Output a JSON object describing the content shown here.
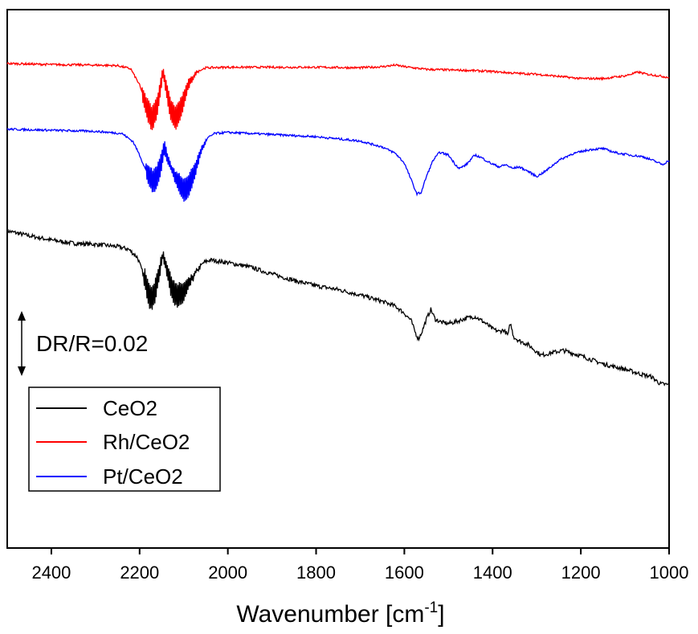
{
  "chart_data": {
    "type": "line",
    "xlabel": "Wavenumber [cm",
    "xlabel_sup": "-1",
    "xlabel_end": "]",
    "xlim": [
      2500,
      1000
    ],
    "ylim": [
      0,
      1
    ],
    "x_ticks": [
      2400,
      2200,
      2000,
      1800,
      1600,
      1400,
      1200,
      1000
    ],
    "x_tick_labels": [
      "2400",
      "2200",
      "2000",
      "1800",
      "1600",
      "1400",
      "1200",
      "1000"
    ],
    "annotation": "DR/R=0.02",
    "legend_position": "lower-left",
    "series": [
      {
        "name": "CeO2",
        "color": "#000000",
        "noise": 0.004,
        "doublet": {
          "centers": [
            2175,
            2115
          ],
          "range": [
            2190,
            2050
          ]
        },
        "points": [
          [
            2500,
            0.589
          ],
          [
            2450,
            0.58
          ],
          [
            2400,
            0.572
          ],
          [
            2350,
            0.566
          ],
          [
            2300,
            0.564
          ],
          [
            2250,
            0.56
          ],
          [
            2225,
            0.555
          ],
          [
            2205,
            0.54
          ],
          [
            2190,
            0.505
          ],
          [
            2175,
            0.463
          ],
          [
            2165,
            0.475
          ],
          [
            2155,
            0.515
          ],
          [
            2147,
            0.545
          ],
          [
            2140,
            0.525
          ],
          [
            2130,
            0.49
          ],
          [
            2115,
            0.466
          ],
          [
            2100,
            0.475
          ],
          [
            2085,
            0.495
          ],
          [
            2070,
            0.515
          ],
          [
            2055,
            0.53
          ],
          [
            2040,
            0.535
          ],
          [
            2000,
            0.53
          ],
          [
            1950,
            0.522
          ],
          [
            1900,
            0.509
          ],
          [
            1850,
            0.497
          ],
          [
            1800,
            0.487
          ],
          [
            1750,
            0.48
          ],
          [
            1700,
            0.47
          ],
          [
            1650,
            0.458
          ],
          [
            1620,
            0.449
          ],
          [
            1600,
            0.436
          ],
          [
            1585,
            0.423
          ],
          [
            1575,
            0.4
          ],
          [
            1568,
            0.388
          ],
          [
            1560,
            0.402
          ],
          [
            1550,
            0.425
          ],
          [
            1540,
            0.443
          ],
          [
            1530,
            0.425
          ],
          [
            1515,
            0.419
          ],
          [
            1500,
            0.417
          ],
          [
            1480,
            0.421
          ],
          [
            1460,
            0.427
          ],
          [
            1440,
            0.43
          ],
          [
            1420,
            0.42
          ],
          [
            1400,
            0.407
          ],
          [
            1385,
            0.402
          ],
          [
            1375,
            0.405
          ],
          [
            1365,
            0.395
          ],
          [
            1360,
            0.418
          ],
          [
            1352,
            0.392
          ],
          [
            1340,
            0.385
          ],
          [
            1320,
            0.378
          ],
          [
            1305,
            0.368
          ],
          [
            1290,
            0.358
          ],
          [
            1270,
            0.362
          ],
          [
            1240,
            0.367
          ],
          [
            1200,
            0.357
          ],
          [
            1150,
            0.342
          ],
          [
            1100,
            0.332
          ],
          [
            1060,
            0.322
          ],
          [
            1040,
            0.318
          ],
          [
            1020,
            0.305
          ],
          [
            1000,
            0.303
          ]
        ]
      },
      {
        "name": "Rh/CeO2",
        "color": "#ff0000",
        "noise": 0.002,
        "doublet": {
          "centers": [
            2172,
            2118
          ],
          "range": [
            2195,
            2060
          ]
        },
        "points": [
          [
            2500,
            0.9
          ],
          [
            2400,
            0.898
          ],
          [
            2300,
            0.897
          ],
          [
            2250,
            0.896
          ],
          [
            2220,
            0.89
          ],
          [
            2200,
            0.86
          ],
          [
            2185,
            0.82
          ],
          [
            2172,
            0.797
          ],
          [
            2160,
            0.82
          ],
          [
            2152,
            0.86
          ],
          [
            2147,
            0.885
          ],
          [
            2140,
            0.855
          ],
          [
            2130,
            0.815
          ],
          [
            2118,
            0.797
          ],
          [
            2105,
            0.82
          ],
          [
            2090,
            0.86
          ],
          [
            2070,
            0.885
          ],
          [
            2050,
            0.892
          ],
          [
            2000,
            0.893
          ],
          [
            1900,
            0.893
          ],
          [
            1800,
            0.893
          ],
          [
            1700,
            0.892
          ],
          [
            1650,
            0.894
          ],
          [
            1620,
            0.897
          ],
          [
            1600,
            0.894
          ],
          [
            1550,
            0.889
          ],
          [
            1500,
            0.888
          ],
          [
            1450,
            0.887
          ],
          [
            1400,
            0.885
          ],
          [
            1350,
            0.882
          ],
          [
            1300,
            0.88
          ],
          [
            1250,
            0.876
          ],
          [
            1200,
            0.872
          ],
          [
            1150,
            0.872
          ],
          [
            1100,
            0.877
          ],
          [
            1070,
            0.884
          ],
          [
            1050,
            0.88
          ],
          [
            1030,
            0.878
          ],
          [
            1000,
            0.874
          ]
        ]
      },
      {
        "name": "Pt/CeO2",
        "color": "#0000ff",
        "noise": 0.002,
        "doublet": {
          "centers": [
            2165,
            2095
          ],
          "range": [
            2185,
            2050
          ]
        },
        "points": [
          [
            2500,
            0.778
          ],
          [
            2400,
            0.776
          ],
          [
            2300,
            0.774
          ],
          [
            2240,
            0.77
          ],
          [
            2215,
            0.755
          ],
          [
            2200,
            0.73
          ],
          [
            2185,
            0.7
          ],
          [
            2170,
            0.68
          ],
          [
            2160,
            0.69
          ],
          [
            2150,
            0.72
          ],
          [
            2144,
            0.745
          ],
          [
            2135,
            0.72
          ],
          [
            2120,
            0.69
          ],
          [
            2100,
            0.665
          ],
          [
            2090,
            0.67
          ],
          [
            2075,
            0.7
          ],
          [
            2060,
            0.74
          ],
          [
            2045,
            0.762
          ],
          [
            2030,
            0.77
          ],
          [
            2000,
            0.772
          ],
          [
            1950,
            0.77
          ],
          [
            1900,
            0.768
          ],
          [
            1850,
            0.766
          ],
          [
            1800,
            0.764
          ],
          [
            1750,
            0.76
          ],
          [
            1700,
            0.756
          ],
          [
            1650,
            0.745
          ],
          [
            1620,
            0.733
          ],
          [
            1600,
            0.715
          ],
          [
            1585,
            0.685
          ],
          [
            1572,
            0.658
          ],
          [
            1562,
            0.66
          ],
          [
            1550,
            0.69
          ],
          [
            1535,
            0.72
          ],
          [
            1520,
            0.735
          ],
          [
            1500,
            0.73
          ],
          [
            1485,
            0.713
          ],
          [
            1475,
            0.705
          ],
          [
            1460,
            0.712
          ],
          [
            1440,
            0.73
          ],
          [
            1425,
            0.725
          ],
          [
            1405,
            0.715
          ],
          [
            1385,
            0.708
          ],
          [
            1370,
            0.712
          ],
          [
            1355,
            0.705
          ],
          [
            1340,
            0.708
          ],
          [
            1320,
            0.7
          ],
          [
            1300,
            0.69
          ],
          [
            1280,
            0.7
          ],
          [
            1250,
            0.72
          ],
          [
            1220,
            0.732
          ],
          [
            1180,
            0.74
          ],
          [
            1150,
            0.742
          ],
          [
            1120,
            0.734
          ],
          [
            1090,
            0.73
          ],
          [
            1060,
            0.727
          ],
          [
            1040,
            0.721
          ],
          [
            1025,
            0.716
          ],
          [
            1015,
            0.712
          ],
          [
            1000,
            0.72
          ]
        ]
      }
    ]
  }
}
